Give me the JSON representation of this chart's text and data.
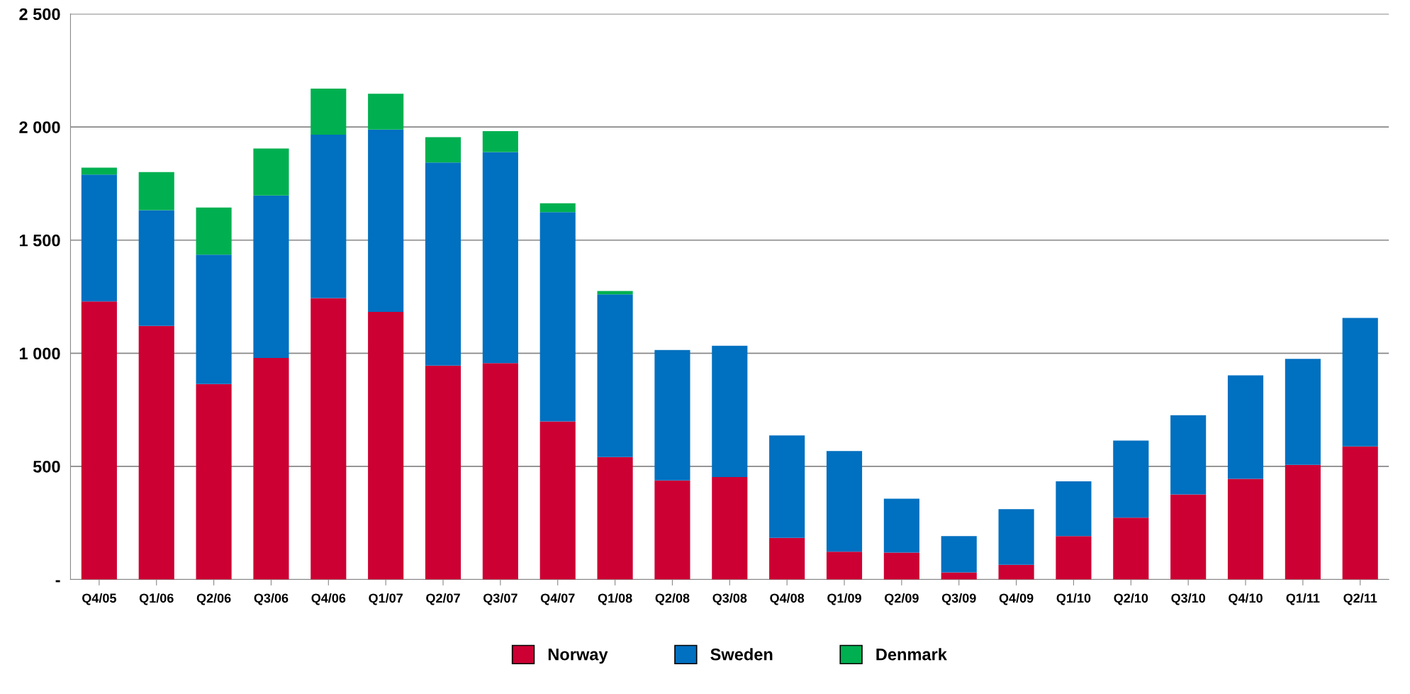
{
  "chart_data": {
    "type": "bar",
    "stacked": true,
    "categories": [
      "Q4/05",
      "Q1/06",
      "Q2/06",
      "Q3/06",
      "Q4/06",
      "Q1/07",
      "Q2/07",
      "Q3/07",
      "Q4/07",
      "Q1/08",
      "Q2/08",
      "Q3/08",
      "Q4/08",
      "Q1/09",
      "Q2/09",
      "Q3/09",
      "Q4/09",
      "Q1/10",
      "Q2/10",
      "Q3/10",
      "Q4/10",
      "Q1/11",
      "Q2/11"
    ],
    "series": [
      {
        "name": "Norway",
        "color": "#cc0033",
        "values": [
          1229,
          1121,
          864,
          979,
          1244,
          1183,
          945,
          956,
          699,
          541,
          438,
          453,
          184,
          123,
          119,
          31,
          65,
          192,
          273,
          376,
          445,
          507,
          588
        ]
      },
      {
        "name": "Sweden",
        "color": "#0070c0",
        "values": [
          561,
          511,
          572,
          718,
          722,
          806,
          898,
          933,
          925,
          719,
          576,
          580,
          453,
          445,
          238,
          161,
          246,
          242,
          341,
          350,
          457,
          468,
          568
        ]
      },
      {
        "name": "Denmark",
        "color": "#00b050",
        "values": [
          30,
          169,
          208,
          208,
          204,
          158,
          112,
          93,
          39,
          15,
          null,
          null,
          null,
          null,
          null,
          null,
          null,
          null,
          null,
          null,
          null,
          null,
          null
        ]
      }
    ],
    "ylim": [
      0,
      2500
    ],
    "yticks": [
      {
        "value": 0,
        "label": "-"
      },
      {
        "value": 500,
        "label": "500"
      },
      {
        "value": 1000,
        "label": "1 000"
      },
      {
        "value": 1500,
        "label": "1 500"
      },
      {
        "value": 2000,
        "label": "2 000"
      },
      {
        "value": 2500,
        "label": "2 500"
      }
    ],
    "grid": "y",
    "legend": "bottom"
  }
}
